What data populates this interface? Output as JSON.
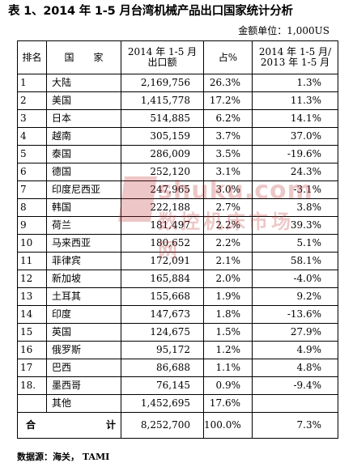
{
  "title": "表 1、2014 年 1-5 月台湾机械产品出口国家统计分析",
  "unit": "金额单位：1,000US",
  "headers": {
    "rank": "排名",
    "country": "国　　家",
    "export_l1": "2014 年 1-5 月",
    "export_l2": "出口额",
    "share": "占%",
    "growth_l1": "2014 年 1-5 月/",
    "growth_l2": "2013 年 1-5 月"
  },
  "rows": [
    {
      "rank": "1",
      "country": "大陆",
      "value": "2,169,756",
      "share": "26.3%",
      "growth": "1.3%"
    },
    {
      "rank": "2",
      "country": "美国",
      "value": "1,415,778",
      "share": "17.2%",
      "growth": "11.3%"
    },
    {
      "rank": "3",
      "country": "日本",
      "value": "514,885",
      "share": "6.2%",
      "growth": "14.1%"
    },
    {
      "rank": "4",
      "country": "越南",
      "value": "305,159",
      "share": "3.7%",
      "growth": "37.0%"
    },
    {
      "rank": "5",
      "country": "泰国",
      "value": "286,009",
      "share": "3.5%",
      "growth": "-19.6%"
    },
    {
      "rank": "6",
      "country": "德国",
      "value": "252,120",
      "share": "3.1%",
      "growth": "24.3%"
    },
    {
      "rank": "7",
      "country": "印度尼西亚",
      "value": "247,965",
      "share": "3.0%",
      "growth": "-3.1%"
    },
    {
      "rank": "8",
      "country": "韩国",
      "value": "222,188",
      "share": "2.7%",
      "growth": "3.8%"
    },
    {
      "rank": "9",
      "country": "荷兰",
      "value": "181,497",
      "share": "2.2%",
      "growth": "39.3%"
    },
    {
      "rank": "10",
      "country": "马来西亚",
      "value": "180,652",
      "share": "2.2%",
      "growth": "5.1%"
    },
    {
      "rank": "11",
      "country": "菲律宾",
      "value": "172,091",
      "share": "2.1%",
      "growth": "58.1%"
    },
    {
      "rank": "12",
      "country": "新加坡",
      "value": "165,884",
      "share": "2.0%",
      "growth": "-4.0%"
    },
    {
      "rank": "13",
      "country": "土耳其",
      "value": "155,668",
      "share": "1.9%",
      "growth": "9.2%"
    },
    {
      "rank": "14",
      "country": "印度",
      "value": "147,673",
      "share": "1.8%",
      "growth": "-13.6%"
    },
    {
      "rank": "15",
      "country": "英国",
      "value": "124,675",
      "share": "1.5%",
      "growth": "27.9%"
    },
    {
      "rank": "16",
      "country": "俄罗斯",
      "value": "95,172",
      "share": "1.2%",
      "growth": "4.9%"
    },
    {
      "rank": "17",
      "country": "巴西",
      "value": "86,688",
      "share": "1.1%",
      "growth": "4.8%"
    },
    {
      "rank": "18.",
      "country": "墨西哥",
      "value": "76,145",
      "share": "0.9%",
      "growth": "-9.4%"
    },
    {
      "rank": "",
      "country": "其他",
      "value": "1,452,695",
      "share": "17.6%",
      "growth": ""
    }
  ],
  "total": {
    "label_a": "合",
    "label_b": "计",
    "value": "8,252,700",
    "share": "100.0%",
    "growth": "7.3%"
  },
  "source": "数据源：海关， TAMI",
  "watermark": {
    "line1": "shuku.com",
    "line2": "数控机床市场网",
    "color": "#c23b3b"
  }
}
